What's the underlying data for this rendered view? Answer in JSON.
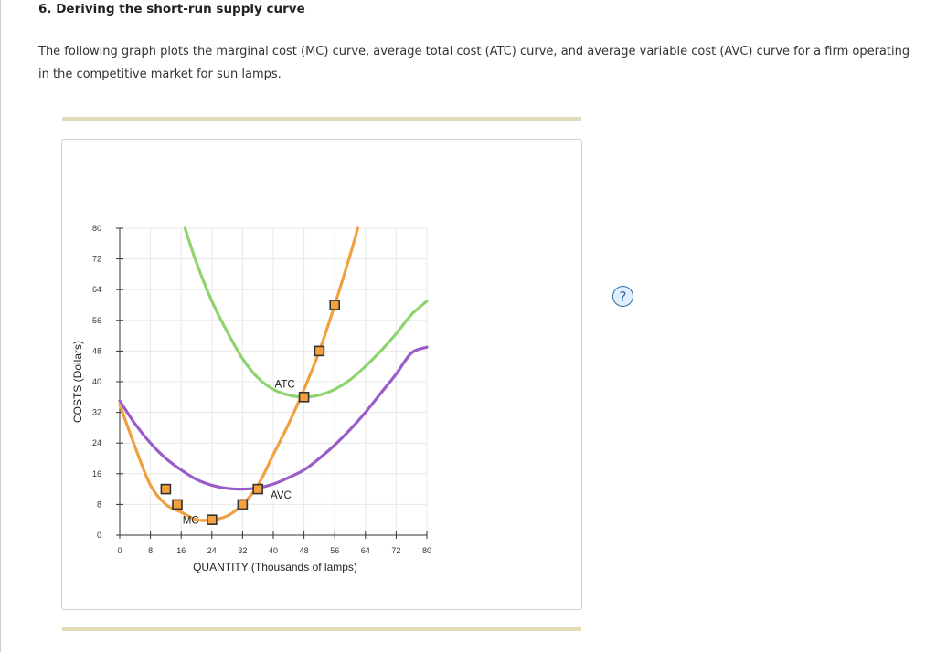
{
  "question": {
    "title": "6. Deriving the short-run supply curve",
    "description": "The following graph plots the marginal cost (MC) curve, average total cost (ATC) curve, and average variable cost (AVC) curve for a firm operating in the competitive market for sun lamps."
  },
  "help": {
    "label": "?"
  },
  "colors": {
    "mc": "#f0a040",
    "atc": "#8fd36f",
    "avc": "#9a5cc8",
    "marker_fill": "#f3a03d",
    "marker_stroke": "#333333",
    "grid": "#e8e8e8",
    "axis": "#333333"
  },
  "chart_data": {
    "type": "line",
    "xlabel": "QUANTITY (Thousands of lamps)",
    "ylabel": "COSTS (Dollars)",
    "xlim": [
      0,
      80
    ],
    "ylim": [
      0,
      80
    ],
    "xticks": [
      0,
      8,
      16,
      24,
      32,
      40,
      48,
      56,
      64,
      72,
      80
    ],
    "yticks": [
      0,
      8,
      16,
      24,
      32,
      40,
      48,
      56,
      64,
      72,
      80
    ],
    "grid": true,
    "series": [
      {
        "name": "MC",
        "x": [
          0,
          4,
          8,
          12,
          16,
          20,
          24,
          28,
          32,
          36,
          40,
          44,
          48,
          52,
          56,
          60,
          62
        ],
        "y": [
          34,
          23,
          13,
          8,
          6,
          4,
          4,
          5,
          8,
          13,
          21,
          29,
          38,
          48,
          60,
          73,
          80
        ],
        "markers": [
          {
            "x": 12,
            "y": 12
          },
          {
            "x": 15,
            "y": 8
          },
          {
            "x": 24,
            "y": 4
          },
          {
            "x": 32,
            "y": 8
          },
          {
            "x": 36,
            "y": 12
          },
          {
            "x": 48,
            "y": 36
          },
          {
            "x": 52,
            "y": 48
          },
          {
            "x": 56,
            "y": 60
          }
        ],
        "label_at": {
          "x": 19,
          "y": 4
        }
      },
      {
        "name": "ATC",
        "x": [
          17,
          20,
          24,
          28,
          32,
          36,
          40,
          44,
          48,
          52,
          56,
          60,
          64,
          68,
          72,
          76,
          80
        ],
        "y": [
          80,
          71,
          61,
          53,
          46,
          41,
          38,
          36.5,
          36,
          36.5,
          38,
          40.5,
          44,
          48,
          52.5,
          57.5,
          61
        ]
      },
      {
        "name": "AVC",
        "x": [
          0,
          4,
          8,
          12,
          16,
          20,
          24,
          28,
          32,
          36,
          40,
          44,
          48,
          52,
          56,
          60,
          64,
          68,
          72,
          76,
          80
        ],
        "y": [
          35,
          29,
          24,
          20,
          17,
          14.5,
          13,
          12.2,
          12,
          12.3,
          13.3,
          15,
          17,
          20,
          23.5,
          27.5,
          32,
          37,
          42,
          47.5,
          49
        ]
      }
    ],
    "annotations": [
      {
        "text": "ATC",
        "x": 43,
        "y": 38.5
      },
      {
        "text": "AVC",
        "x": 42,
        "y": 9.5
      },
      {
        "text": "MC",
        "x": 18.5,
        "y": 3
      }
    ]
  }
}
